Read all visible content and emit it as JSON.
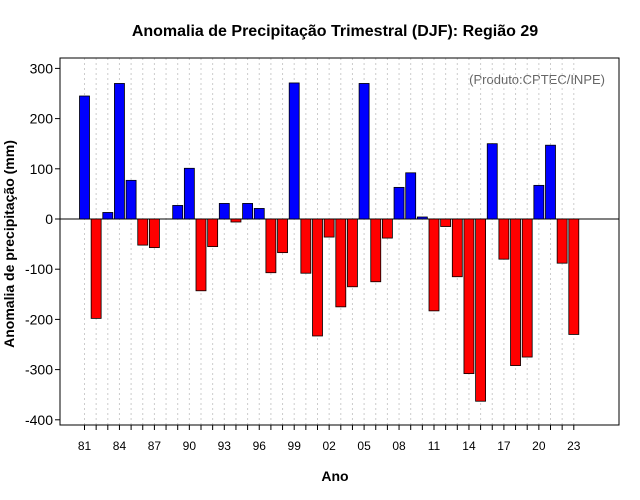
{
  "chart_data": {
    "type": "bar",
    "title": "Anomalia de Precipitação Trimestral (DJF): Região 29",
    "xlabel": "Ano",
    "ylabel": "Anomalia de precipitação (mm)",
    "annotation": "(Produto:CPTEC/INPE)",
    "ylim": [
      -410,
      320
    ],
    "yticks": [
      -400,
      -300,
      -200,
      -100,
      0,
      100,
      200,
      300
    ],
    "xtick_labels": [
      "81",
      "84",
      "87",
      "90",
      "93",
      "96",
      "99",
      "02",
      "05",
      "08",
      "11",
      "14",
      "17",
      "20",
      "23"
    ],
    "years": [
      1981,
      1982,
      1983,
      1984,
      1985,
      1986,
      1987,
      1988,
      1989,
      1990,
      1991,
      1992,
      1993,
      1994,
      1995,
      1996,
      1997,
      1998,
      1999,
      2000,
      2001,
      2002,
      2003,
      2004,
      2005,
      2006,
      2007,
      2008,
      2009,
      2010,
      2011,
      2012,
      2013,
      2014,
      2015,
      2016,
      2017,
      2018,
      2019,
      2020,
      2021,
      2022,
      2023
    ],
    "values": [
      245,
      -198,
      13,
      270,
      77,
      -52,
      -57,
      0,
      27,
      101,
      -143,
      -55,
      31,
      -6,
      31,
      21,
      -107,
      -67,
      271,
      -108,
      -233,
      -36,
      -175,
      -135,
      270,
      -125,
      -38,
      63,
      92,
      4,
      -183,
      -15,
      -115,
      -308,
      -363,
      150,
      -80,
      -292,
      -275,
      67,
      147,
      -88,
      -230
    ],
    "positive_color": "#0000ff",
    "negative_color": "#ff0000",
    "grid": true
  }
}
